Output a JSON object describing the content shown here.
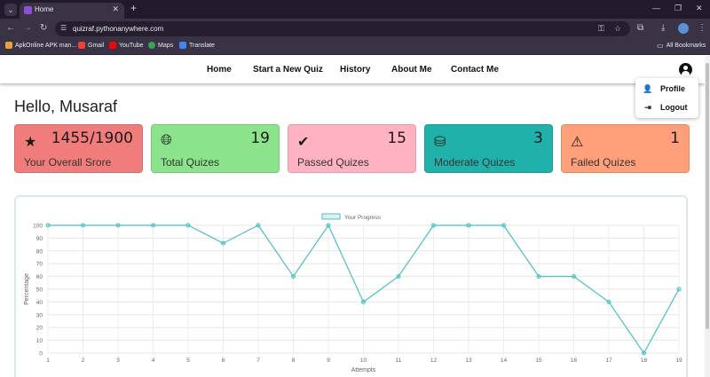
{
  "browser": {
    "tab_title": "Home",
    "url": "quizraf.pythonanywhere.com",
    "bookmarks": [
      "ApkOnline APK man...",
      "Gmail",
      "YouTube",
      "Maps",
      "Translate"
    ],
    "all_bookmarks": "All Bookmarks"
  },
  "nav": {
    "links": [
      "Home",
      "Start a New Quiz",
      "History",
      "About Me",
      "Contact Me"
    ]
  },
  "profile_menu": {
    "items": [
      "Profile",
      "Logout"
    ]
  },
  "greeting": "Hello, Musaraf",
  "cards": [
    {
      "value": "1455/1900",
      "label": "Your Overall Srore",
      "icon": "star-icon",
      "color": "#f07c7c"
    },
    {
      "value": "19",
      "label": "Total Quizes",
      "icon": "globe-icon",
      "color": "#8be38b"
    },
    {
      "value": "15",
      "label": "Passed Quizes",
      "icon": "check-circle-icon",
      "color": "#ffb2c1"
    },
    {
      "value": "3",
      "label": "Moderate Quizes",
      "icon": "coins-icon",
      "color": "#20b2aa"
    },
    {
      "value": "1",
      "label": "Failed Quizes",
      "icon": "warning-icon",
      "color": "#ffa07a"
    }
  ],
  "chart_data": {
    "type": "line",
    "legend": "Your Progress",
    "xlabel": "Attempts",
    "ylabel": "Percentage",
    "x": [
      1,
      2,
      3,
      4,
      5,
      6,
      7,
      8,
      9,
      10,
      11,
      12,
      13,
      14,
      15,
      16,
      17,
      18,
      19
    ],
    "values": [
      100,
      100,
      100,
      100,
      100,
      86,
      100,
      60,
      100,
      40,
      60,
      100,
      100,
      100,
      60,
      60,
      40,
      0,
      50
    ],
    "ylim": [
      0,
      100
    ],
    "yticks": [
      0,
      10,
      20,
      30,
      40,
      50,
      60,
      70,
      80,
      90,
      100
    ],
    "color": "#4bc0c0",
    "grid": true,
    "legend_position": "top"
  }
}
